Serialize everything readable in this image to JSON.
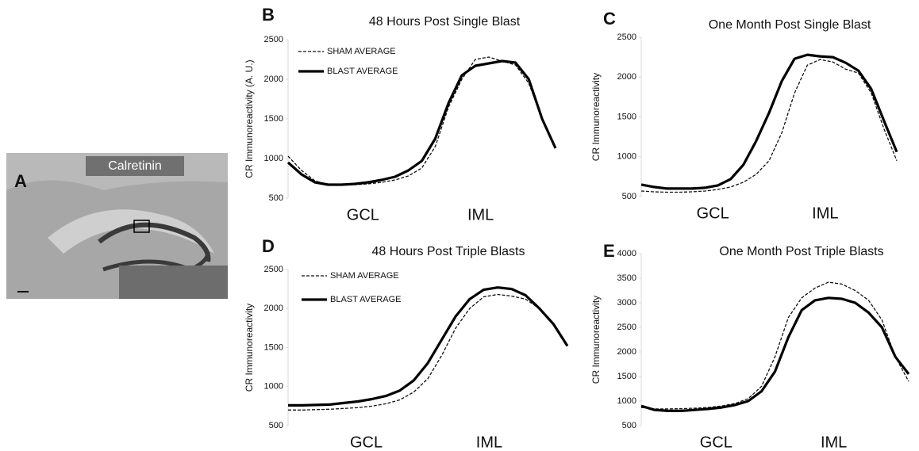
{
  "panel_a": {
    "letter": "A",
    "label": "Calretinin"
  },
  "chart_data": [
    {
      "type": "line",
      "panel": "B",
      "title": "48 Hours Post Single Blast",
      "y_label": "CR Immunoreactivity (A. U.)",
      "x_labels": [
        "GCL",
        "IML"
      ],
      "ylim": [
        500,
        2500
      ],
      "yticks": [
        500,
        1000,
        1500,
        2000,
        2500
      ],
      "legend": true,
      "series": [
        {
          "name": "SHAM AVERAGE",
          "color": "#111111",
          "line_style": "dashed",
          "values": [
            1030,
            850,
            720,
            670,
            665,
            670,
            680,
            700,
            730,
            780,
            880,
            1150,
            1650,
            2000,
            2250,
            2280,
            2230,
            2180,
            1950,
            1500,
            1150
          ]
        },
        {
          "name": "BLAST AVERAGE",
          "color": "#000000",
          "line_style": "solid",
          "values": [
            950,
            800,
            700,
            670,
            670,
            680,
            700,
            730,
            770,
            850,
            970,
            1250,
            1700,
            2050,
            2170,
            2200,
            2230,
            2210,
            2000,
            1500,
            1130
          ]
        }
      ]
    },
    {
      "type": "line",
      "panel": "C",
      "title": "One Month Post Single Blast",
      "y_label": "CR Immunoreactivity",
      "x_labels": [
        "GCL",
        "IML"
      ],
      "ylim": [
        500,
        2500
      ],
      "yticks": [
        500,
        1000,
        1500,
        2000,
        2500
      ],
      "legend": false,
      "series": [
        {
          "color": "#111111",
          "line_style": "dashed",
          "values": [
            570,
            560,
            555,
            555,
            560,
            570,
            590,
            620,
            680,
            780,
            950,
            1300,
            1800,
            2150,
            2220,
            2190,
            2100,
            2050,
            1800,
            1350,
            950
          ]
        },
        {
          "color": "#000000",
          "line_style": "solid",
          "values": [
            650,
            620,
            600,
            600,
            600,
            610,
            640,
            720,
            900,
            1200,
            1550,
            1950,
            2230,
            2280,
            2260,
            2250,
            2180,
            2080,
            1850,
            1450,
            1060
          ]
        }
      ]
    },
    {
      "type": "line",
      "panel": "D",
      "title": "48 Hours Post Triple Blasts",
      "y_label": "CR Immunoreactivity",
      "x_labels": [
        "GCL",
        "IML"
      ],
      "ylim": [
        500,
        2500
      ],
      "yticks": [
        500,
        1000,
        1500,
        2000,
        2500
      ],
      "legend": true,
      "series": [
        {
          "name": "SHAM AVERAGE",
          "color": "#111111",
          "line_style": "dashed",
          "values": [
            700,
            700,
            705,
            710,
            720,
            730,
            750,
            780,
            830,
            930,
            1100,
            1400,
            1750,
            2000,
            2150,
            2180,
            2160,
            2120,
            2000,
            1800,
            1530
          ]
        },
        {
          "name": "BLAST AVERAGE",
          "color": "#000000",
          "line_style": "solid",
          "values": [
            760,
            760,
            765,
            770,
            790,
            810,
            840,
            880,
            950,
            1080,
            1300,
            1600,
            1900,
            2120,
            2240,
            2270,
            2250,
            2170,
            2000,
            1800,
            1520
          ]
        }
      ]
    },
    {
      "type": "line",
      "panel": "E",
      "title": "One Month Post Triple Blasts",
      "y_label": "CR Immunoreactivity",
      "x_labels": [
        "GCL",
        "IML"
      ],
      "ylim": [
        500,
        4000
      ],
      "yticks": [
        500,
        1000,
        1500,
        2000,
        2500,
        3000,
        3500,
        4000
      ],
      "legend": false,
      "series": [
        {
          "color": "#111111",
          "line_style": "dashed",
          "values": [
            870,
            840,
            840,
            845,
            855,
            870,
            900,
            950,
            1050,
            1300,
            1900,
            2700,
            3100,
            3300,
            3420,
            3380,
            3250,
            3050,
            2650,
            1900,
            1400
          ]
        },
        {
          "color": "#000000",
          "line_style": "solid",
          "values": [
            900,
            820,
            800,
            800,
            820,
            840,
            870,
            920,
            1000,
            1200,
            1600,
            2300,
            2850,
            3050,
            3100,
            3080,
            3000,
            2800,
            2500,
            1900,
            1550
          ]
        }
      ]
    }
  ]
}
